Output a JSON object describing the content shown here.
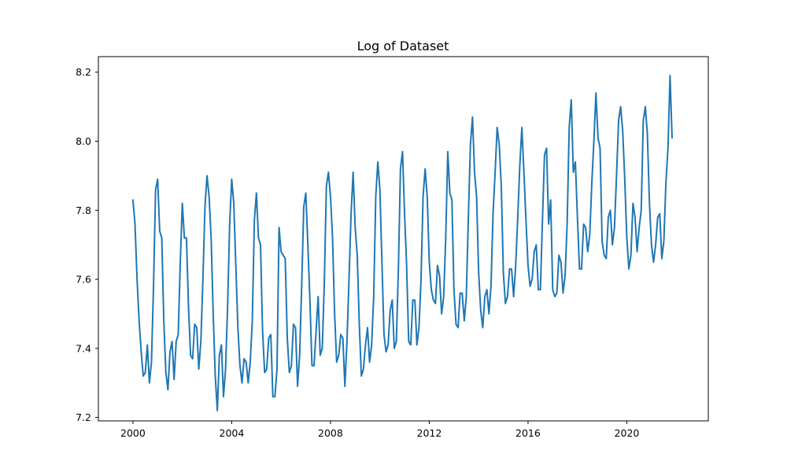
{
  "chart_data": {
    "type": "line",
    "title": "Log of Dataset",
    "xlabel": "",
    "ylabel": "",
    "xlim": [
      1998.6,
      2023.3
    ],
    "ylim": [
      7.19,
      8.245
    ],
    "x_ticks": [
      2000,
      2004,
      2008,
      2012,
      2016,
      2020
    ],
    "x_tick_labels": [
      "2000",
      "2004",
      "2008",
      "2012",
      "2016",
      "2020"
    ],
    "y_ticks": [
      7.2,
      7.4,
      7.6,
      7.8,
      8.0,
      8.2
    ],
    "y_tick_labels": [
      "7.2",
      "7.4",
      "7.6",
      "7.8",
      "8.0",
      "8.2"
    ],
    "grid": false,
    "colors": {
      "line": "#1f77b4"
    },
    "series": [
      {
        "x_start": "2000-01",
        "frequency": "monthly",
        "values": [
          7.83,
          7.76,
          7.6,
          7.48,
          7.39,
          7.32,
          7.33,
          7.41,
          7.3,
          7.36,
          7.58,
          7.86,
          7.89,
          7.74,
          7.72,
          7.48,
          7.33,
          7.28,
          7.39,
          7.42,
          7.31,
          7.42,
          7.44,
          7.65,
          7.82,
          7.72,
          7.72,
          7.52,
          7.38,
          7.37,
          7.47,
          7.46,
          7.34,
          7.42,
          7.6,
          7.81,
          7.9,
          7.84,
          7.72,
          7.5,
          7.32,
          7.22,
          7.38,
          7.41,
          7.26,
          7.34,
          7.52,
          7.76,
          7.89,
          7.82,
          7.64,
          7.46,
          7.35,
          7.3,
          7.37,
          7.36,
          7.3,
          7.36,
          7.48,
          7.77,
          7.85,
          7.72,
          7.7,
          7.45,
          7.33,
          7.34,
          7.43,
          7.44,
          7.26,
          7.26,
          7.34,
          7.75,
          7.68,
          7.67,
          7.66,
          7.43,
          7.33,
          7.35,
          7.47,
          7.46,
          7.29,
          7.38,
          7.58,
          7.81,
          7.85,
          7.7,
          7.54,
          7.35,
          7.35,
          7.45,
          7.55,
          7.38,
          7.4,
          7.59,
          7.87,
          7.91,
          7.84,
          7.72,
          7.5,
          7.36,
          7.38,
          7.44,
          7.43,
          7.29,
          7.42,
          7.6,
          7.79,
          7.91,
          7.75,
          7.67,
          7.47,
          7.32,
          7.34,
          7.41,
          7.46,
          7.36,
          7.41,
          7.55,
          7.84,
          7.94,
          7.86,
          7.65,
          7.44,
          7.39,
          7.41,
          7.51,
          7.54,
          7.4,
          7.42,
          7.63,
          7.92,
          7.97,
          7.79,
          7.64,
          7.42,
          7.41,
          7.54,
          7.54,
          7.41,
          7.46,
          7.6,
          7.84,
          7.92,
          7.84,
          7.65,
          7.57,
          7.54,
          7.53,
          7.64,
          7.61,
          7.5,
          7.55,
          7.72,
          7.97,
          7.85,
          7.83,
          7.57,
          7.47,
          7.46,
          7.56,
          7.56,
          7.48,
          7.55,
          7.78,
          7.99,
          8.07,
          7.91,
          7.84,
          7.62,
          7.51,
          7.46,
          7.55,
          7.57,
          7.5,
          7.58,
          7.79,
          7.91,
          8.04,
          7.99,
          7.87,
          7.62,
          7.53,
          7.55,
          7.63,
          7.63,
          7.55,
          7.64,
          7.78,
          7.93,
          8.04,
          7.91,
          7.77,
          7.64,
          7.58,
          7.6,
          7.68,
          7.7,
          7.57,
          7.57,
          7.77,
          7.96,
          7.98,
          7.76,
          7.83,
          7.57,
          7.55,
          7.56,
          7.67,
          7.65,
          7.56,
          7.61,
          7.76,
          8.04,
          8.12,
          7.91,
          7.94,
          7.78,
          7.63,
          7.63,
          7.76,
          7.75,
          7.68,
          7.73,
          7.88,
          8.0,
          8.14,
          8.01,
          7.98,
          7.71,
          7.67,
          7.66,
          7.78,
          7.8,
          7.7,
          7.75,
          7.9,
          8.06,
          8.1,
          8.03,
          7.89,
          7.72,
          7.63,
          7.67,
          7.82,
          7.78,
          7.68,
          7.75,
          7.8,
          8.06,
          8.1,
          8.02,
          7.82,
          7.7,
          7.65,
          7.7,
          7.78,
          7.79,
          7.66,
          7.71,
          7.88,
          7.98,
          8.19,
          8.01
        ]
      }
    ]
  }
}
